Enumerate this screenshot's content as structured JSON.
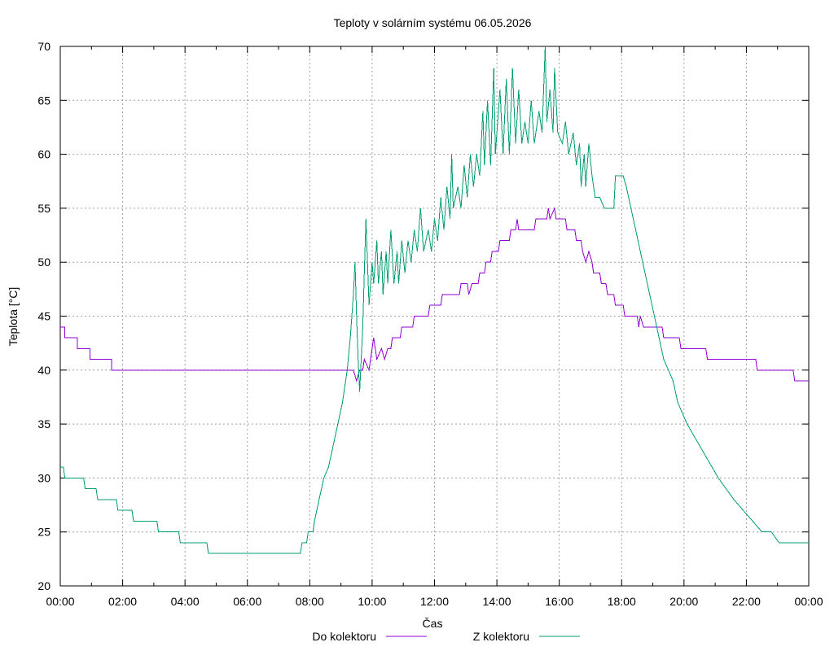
{
  "chart_data": {
    "type": "line",
    "title": "Teploty v solárním systému 06.05.2026",
    "xlabel": "Čas",
    "ylabel": "Teplota [°C]",
    "x_unit": "hours",
    "xlim": [
      0,
      24
    ],
    "ylim": [
      20,
      70
    ],
    "x_ticks": [
      "00:00",
      "02:00",
      "04:00",
      "06:00",
      "08:00",
      "10:00",
      "12:00",
      "14:00",
      "16:00",
      "18:00",
      "20:00",
      "22:00",
      "00:00"
    ],
    "y_ticks": [
      "20",
      "25",
      "30",
      "35",
      "40",
      "45",
      "50",
      "55",
      "60",
      "65",
      "70"
    ],
    "grid": true,
    "legend_position": "bottom",
    "series": [
      {
        "name": "Do kolektoru",
        "color": "#9400d3",
        "points": [
          [
            0,
            44
          ],
          [
            0.15,
            44
          ],
          [
            0.15,
            43
          ],
          [
            0.55,
            43
          ],
          [
            0.55,
            42
          ],
          [
            0.95,
            42
          ],
          [
            0.95,
            41
          ],
          [
            1.65,
            41
          ],
          [
            1.65,
            40
          ],
          [
            9.4,
            40
          ],
          [
            9.5,
            39
          ],
          [
            9.6,
            40
          ],
          [
            9.7,
            40
          ],
          [
            9.75,
            41
          ],
          [
            9.9,
            40
          ],
          [
            10.0,
            42
          ],
          [
            10.05,
            43
          ],
          [
            10.15,
            41
          ],
          [
            10.3,
            42
          ],
          [
            10.4,
            41
          ],
          [
            10.5,
            42
          ],
          [
            10.6,
            42
          ],
          [
            10.65,
            43
          ],
          [
            10.9,
            43
          ],
          [
            10.95,
            44
          ],
          [
            11.3,
            44
          ],
          [
            11.35,
            45
          ],
          [
            11.8,
            45
          ],
          [
            11.85,
            46
          ],
          [
            12.2,
            46
          ],
          [
            12.25,
            47
          ],
          [
            12.8,
            47
          ],
          [
            12.85,
            48
          ],
          [
            13.05,
            48
          ],
          [
            13.1,
            47
          ],
          [
            13.2,
            48
          ],
          [
            13.4,
            48
          ],
          [
            13.45,
            49
          ],
          [
            13.6,
            49
          ],
          [
            13.65,
            50
          ],
          [
            13.8,
            50
          ],
          [
            13.85,
            51
          ],
          [
            14.05,
            51
          ],
          [
            14.1,
            52
          ],
          [
            14.4,
            52
          ],
          [
            14.45,
            53
          ],
          [
            14.6,
            53
          ],
          [
            14.65,
            54
          ],
          [
            14.7,
            53
          ],
          [
            15.2,
            53
          ],
          [
            15.25,
            54
          ],
          [
            15.6,
            54
          ],
          [
            15.65,
            55
          ],
          [
            15.7,
            54
          ],
          [
            15.85,
            55
          ],
          [
            15.9,
            54
          ],
          [
            16.2,
            54
          ],
          [
            16.25,
            53
          ],
          [
            16.5,
            53
          ],
          [
            16.55,
            52
          ],
          [
            16.7,
            52
          ],
          [
            16.75,
            51
          ],
          [
            16.85,
            50
          ],
          [
            16.95,
            51
          ],
          [
            17.05,
            50
          ],
          [
            17.1,
            49
          ],
          [
            17.3,
            49
          ],
          [
            17.35,
            48
          ],
          [
            17.5,
            48
          ],
          [
            17.55,
            47
          ],
          [
            17.75,
            47
          ],
          [
            17.8,
            46
          ],
          [
            18.05,
            46
          ],
          [
            18.1,
            45
          ],
          [
            18.5,
            45
          ],
          [
            18.55,
            44
          ],
          [
            18.6,
            45
          ],
          [
            18.7,
            44
          ],
          [
            19.3,
            44
          ],
          [
            19.35,
            43
          ],
          [
            19.85,
            43
          ],
          [
            19.9,
            42
          ],
          [
            20.7,
            42
          ],
          [
            20.75,
            41
          ],
          [
            22.3,
            41
          ],
          [
            22.35,
            40
          ],
          [
            23.5,
            40
          ],
          [
            23.55,
            39
          ],
          [
            24,
            39
          ]
        ]
      },
      {
        "name": "Z kolektoru",
        "color": "#009e73",
        "points": [
          [
            0,
            31
          ],
          [
            0.1,
            31
          ],
          [
            0.15,
            30
          ],
          [
            0.75,
            30
          ],
          [
            0.8,
            29
          ],
          [
            1.15,
            29
          ],
          [
            1.2,
            28
          ],
          [
            1.8,
            28
          ],
          [
            1.85,
            27
          ],
          [
            2.3,
            27
          ],
          [
            2.35,
            26
          ],
          [
            3.1,
            26
          ],
          [
            3.15,
            25
          ],
          [
            3.8,
            25
          ],
          [
            3.85,
            24
          ],
          [
            4.7,
            24
          ],
          [
            4.75,
            23
          ],
          [
            7.7,
            23
          ],
          [
            7.75,
            24
          ],
          [
            7.9,
            24
          ],
          [
            7.95,
            25
          ],
          [
            8.1,
            25
          ],
          [
            8.15,
            26
          ],
          [
            8.3,
            28
          ],
          [
            8.45,
            30
          ],
          [
            8.6,
            31
          ],
          [
            8.75,
            33
          ],
          [
            8.9,
            35
          ],
          [
            9.05,
            37
          ],
          [
            9.2,
            40
          ],
          [
            9.3,
            43
          ],
          [
            9.4,
            47
          ],
          [
            9.45,
            50
          ],
          [
            9.5,
            45
          ],
          [
            9.55,
            41
          ],
          [
            9.6,
            38
          ],
          [
            9.65,
            41
          ],
          [
            9.7,
            44
          ],
          [
            9.75,
            49
          ],
          [
            9.8,
            54
          ],
          [
            9.85,
            50
          ],
          [
            9.9,
            46
          ],
          [
            10.0,
            50
          ],
          [
            10.05,
            48
          ],
          [
            10.15,
            52
          ],
          [
            10.2,
            48
          ],
          [
            10.3,
            51
          ],
          [
            10.35,
            47
          ],
          [
            10.45,
            51
          ],
          [
            10.5,
            48
          ],
          [
            10.6,
            53
          ],
          [
            10.7,
            48
          ],
          [
            10.8,
            51
          ],
          [
            10.85,
            48
          ],
          [
            10.95,
            52
          ],
          [
            11.05,
            49
          ],
          [
            11.15,
            52
          ],
          [
            11.25,
            50
          ],
          [
            11.35,
            53
          ],
          [
            11.45,
            51
          ],
          [
            11.55,
            55
          ],
          [
            11.65,
            51
          ],
          [
            11.8,
            53
          ],
          [
            11.9,
            51
          ],
          [
            12.0,
            54
          ],
          [
            12.1,
            52
          ],
          [
            12.2,
            56
          ],
          [
            12.3,
            53
          ],
          [
            12.4,
            57
          ],
          [
            12.5,
            54
          ],
          [
            12.55,
            60
          ],
          [
            12.6,
            55
          ],
          [
            12.75,
            57
          ],
          [
            12.85,
            55
          ],
          [
            12.95,
            59
          ],
          [
            13.05,
            56
          ],
          [
            13.15,
            60
          ],
          [
            13.25,
            57
          ],
          [
            13.35,
            60
          ],
          [
            13.45,
            58
          ],
          [
            13.55,
            64
          ],
          [
            13.6,
            59
          ],
          [
            13.7,
            65
          ],
          [
            13.8,
            59
          ],
          [
            13.9,
            68
          ],
          [
            13.95,
            60
          ],
          [
            14.1,
            66
          ],
          [
            14.2,
            60
          ],
          [
            14.3,
            67
          ],
          [
            14.4,
            60
          ],
          [
            14.5,
            68
          ],
          [
            14.6,
            61
          ],
          [
            14.7,
            66
          ],
          [
            14.8,
            61
          ],
          [
            14.9,
            63
          ],
          [
            15.0,
            61
          ],
          [
            15.1,
            65
          ],
          [
            15.2,
            61
          ],
          [
            15.35,
            64
          ],
          [
            15.45,
            62
          ],
          [
            15.55,
            70
          ],
          [
            15.6,
            63
          ],
          [
            15.7,
            66
          ],
          [
            15.8,
            62
          ],
          [
            15.85,
            68
          ],
          [
            15.95,
            62
          ],
          [
            16.1,
            61
          ],
          [
            16.2,
            63
          ],
          [
            16.3,
            60
          ],
          [
            16.45,
            62
          ],
          [
            16.55,
            59
          ],
          [
            16.65,
            61
          ],
          [
            16.7,
            57
          ],
          [
            16.8,
            60
          ],
          [
            16.85,
            57
          ],
          [
            16.95,
            61
          ],
          [
            17.05,
            58
          ],
          [
            17.15,
            56
          ],
          [
            17.3,
            56
          ],
          [
            17.45,
            55
          ],
          [
            17.75,
            55
          ],
          [
            17.8,
            58
          ],
          [
            18.05,
            58
          ],
          [
            18.15,
            57
          ],
          [
            18.3,
            55
          ],
          [
            18.45,
            53
          ],
          [
            18.6,
            51
          ],
          [
            18.75,
            49
          ],
          [
            18.9,
            47
          ],
          [
            19.05,
            45
          ],
          [
            19.2,
            43
          ],
          [
            19.35,
            41
          ],
          [
            19.5,
            40
          ],
          [
            19.65,
            39
          ],
          [
            19.8,
            37
          ],
          [
            19.95,
            36
          ],
          [
            20.1,
            35
          ],
          [
            20.3,
            34
          ],
          [
            20.5,
            33
          ],
          [
            20.7,
            32
          ],
          [
            20.9,
            31
          ],
          [
            21.1,
            30
          ],
          [
            21.35,
            29
          ],
          [
            21.6,
            28
          ],
          [
            21.9,
            27
          ],
          [
            22.2,
            26
          ],
          [
            22.5,
            25
          ],
          [
            22.8,
            25
          ],
          [
            23.05,
            24
          ],
          [
            23.5,
            24
          ],
          [
            23.6,
            24
          ],
          [
            24,
            24
          ]
        ]
      }
    ]
  }
}
